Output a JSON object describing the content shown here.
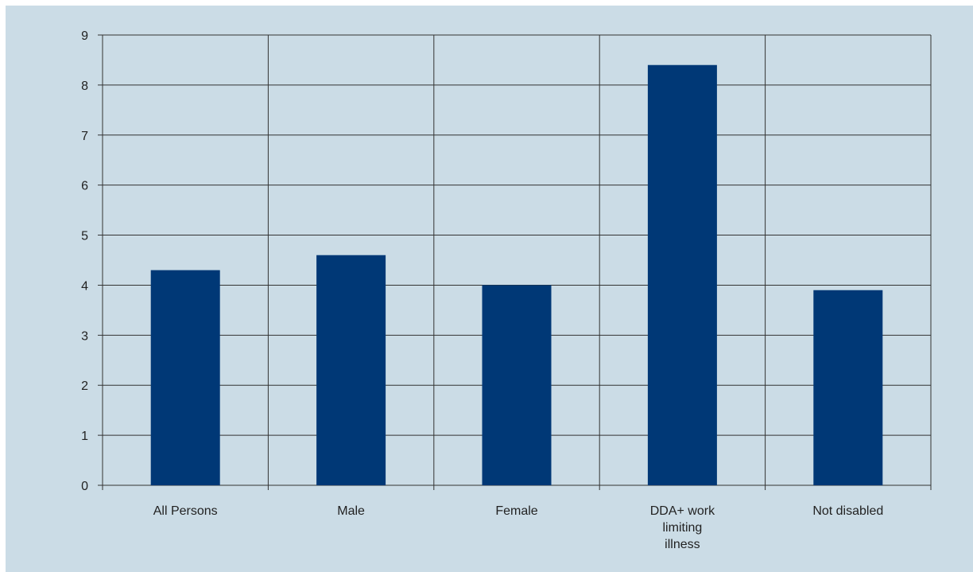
{
  "chart_data": {
    "type": "bar",
    "title": "",
    "xlabel": "",
    "ylabel": "",
    "categories": [
      [
        "All Persons"
      ],
      [
        "Male"
      ],
      [
        "Female"
      ],
      [
        "DDA+ work",
        "limiting",
        "illness"
      ],
      [
        "Not disabled"
      ]
    ],
    "values": [
      4.3,
      4.6,
      4.0,
      8.4,
      3.9
    ],
    "ylim": [
      0,
      9
    ],
    "yticks": [
      "0",
      "1",
      "2",
      "3",
      "4",
      "5",
      "6",
      "7",
      "8",
      "9"
    ],
    "grid": true,
    "legend": "none",
    "colors": {
      "bar": "#003876",
      "grid": "#333333",
      "background": "#cbdce6"
    }
  }
}
